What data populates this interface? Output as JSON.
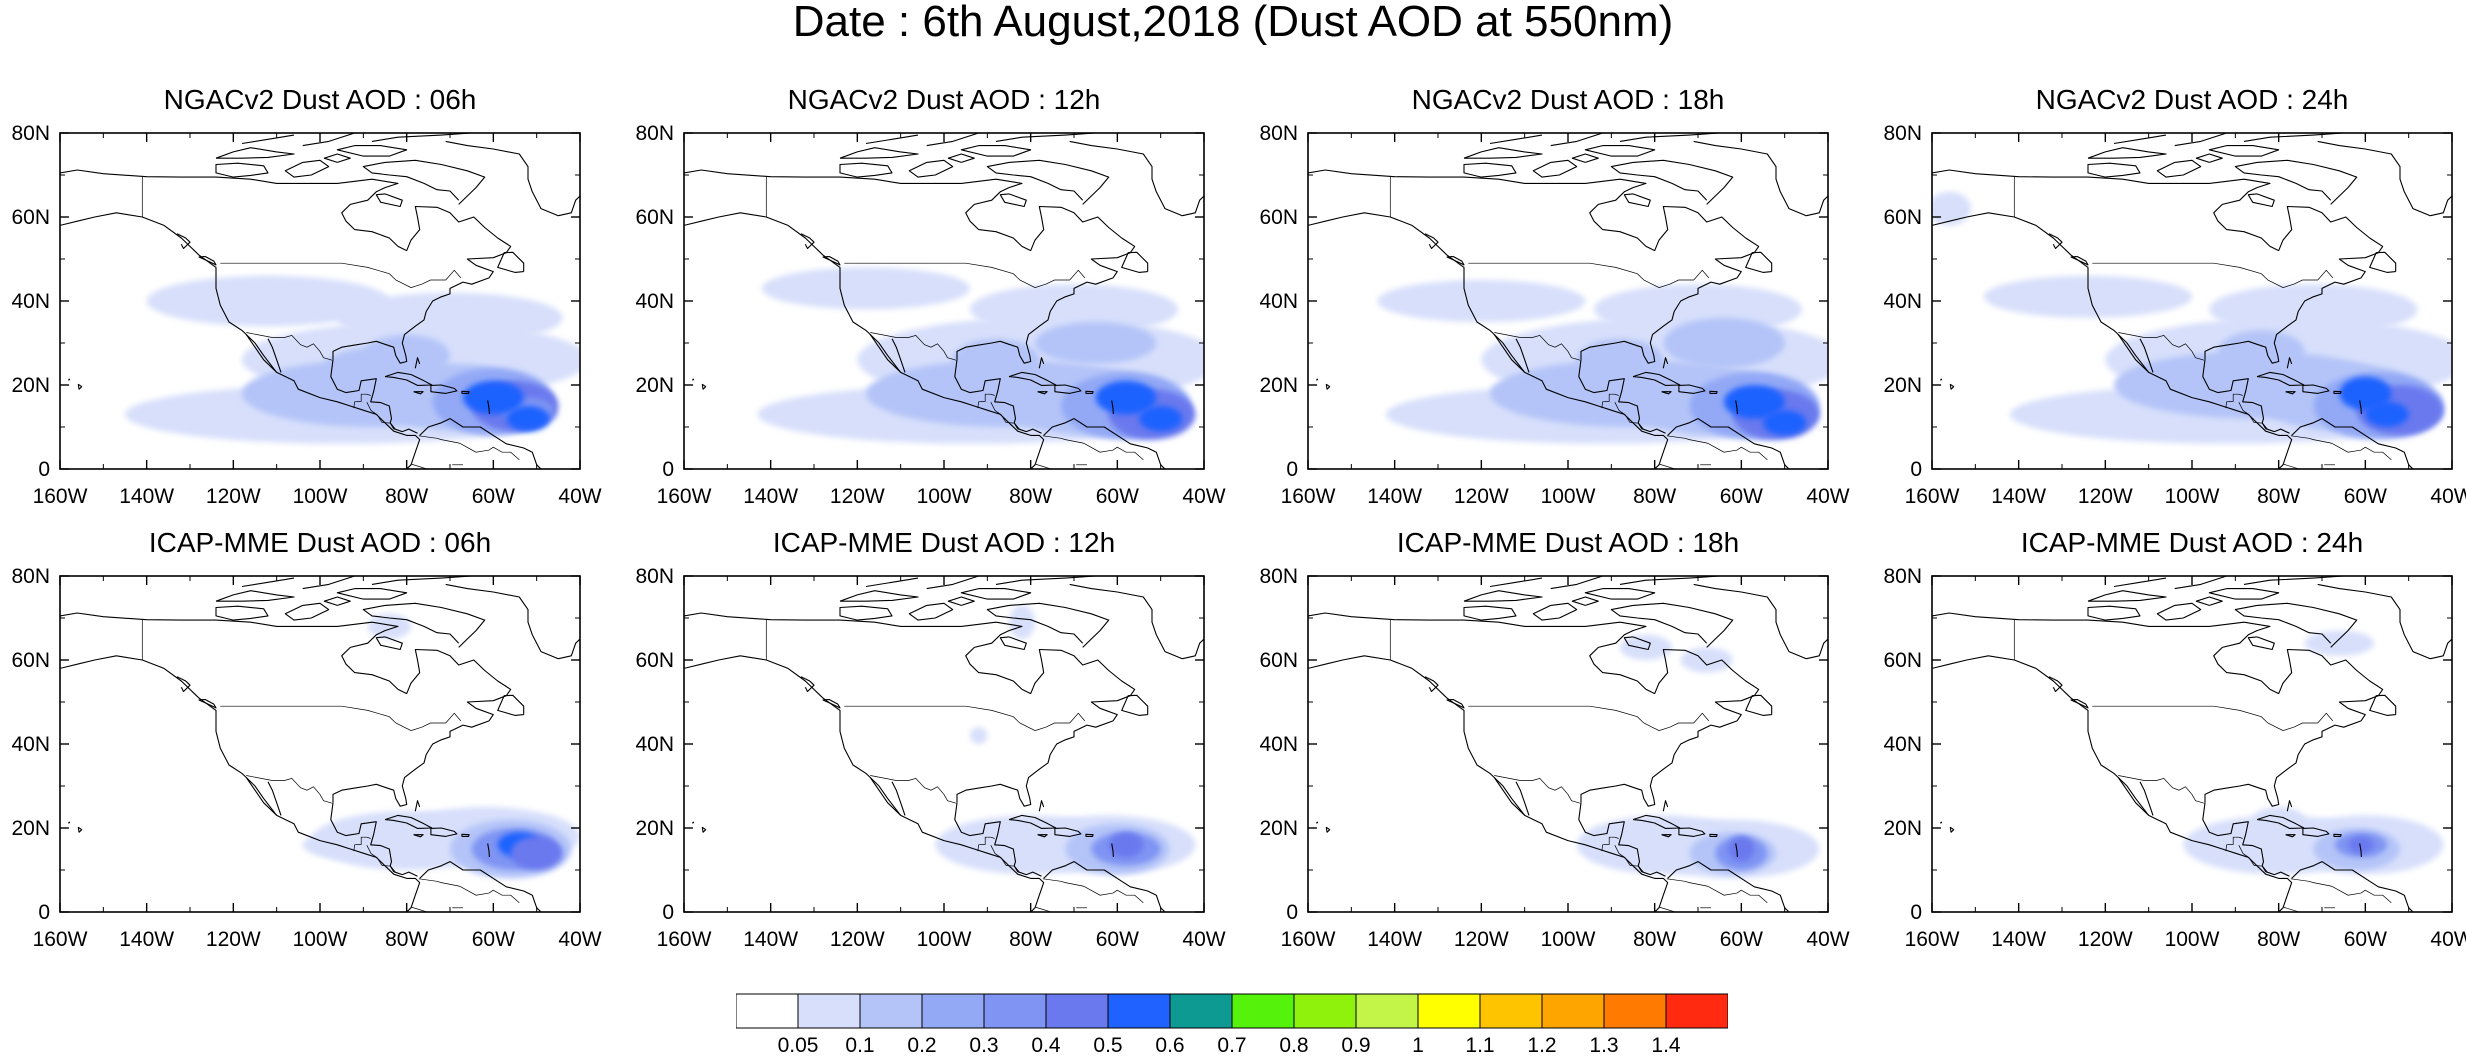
{
  "title": "Date : 6th August,2018 (Dust AOD at 550nm)",
  "panels": [
    {
      "title": "NGACv2 Dust AOD : 06h",
      "model": "NGACv2",
      "hour": "06h"
    },
    {
      "title": "NGACv2 Dust AOD : 12h",
      "model": "NGACv2",
      "hour": "12h"
    },
    {
      "title": "NGACv2 Dust AOD : 18h",
      "model": "NGACv2",
      "hour": "18h"
    },
    {
      "title": "NGACv2 Dust AOD : 24h",
      "model": "NGACv2",
      "hour": "24h"
    },
    {
      "title": "ICAP-MME Dust AOD : 06h",
      "model": "ICAP-MME",
      "hour": "06h"
    },
    {
      "title": "ICAP-MME Dust AOD : 12h",
      "model": "ICAP-MME",
      "hour": "12h"
    },
    {
      "title": "ICAP-MME Dust AOD : 18h",
      "model": "ICAP-MME",
      "hour": "18h"
    },
    {
      "title": "ICAP-MME Dust AOD : 24h",
      "model": "ICAP-MME",
      "hour": "24h"
    }
  ],
  "axes": {
    "lat_ticks": [
      "80N",
      "60N",
      "40N",
      "20N",
      "0"
    ],
    "lon_ticks": [
      "160W",
      "140W",
      "120W",
      "100W",
      "80W",
      "60W",
      "40W"
    ]
  },
  "colorbar": {
    "labels": [
      "0.05",
      "0.1",
      "0.2",
      "0.3",
      "0.4",
      "0.5",
      "0.6",
      "0.7",
      "0.8",
      "0.9",
      "1",
      "1.1",
      "1.2",
      "1.3",
      "1.4"
    ],
    "colors": [
      "#ffffff",
      "#d7dffb",
      "#b4c4f8",
      "#93a9f6",
      "#7f94f3",
      "#6a79ee",
      "#1f62ff",
      "#0c9a93",
      "#55f20c",
      "#8ef20c",
      "#c2f547",
      "#ffff00",
      "#ffc400",
      "#ffa500",
      "#ff7a00",
      "#ff2a10"
    ]
  }
}
